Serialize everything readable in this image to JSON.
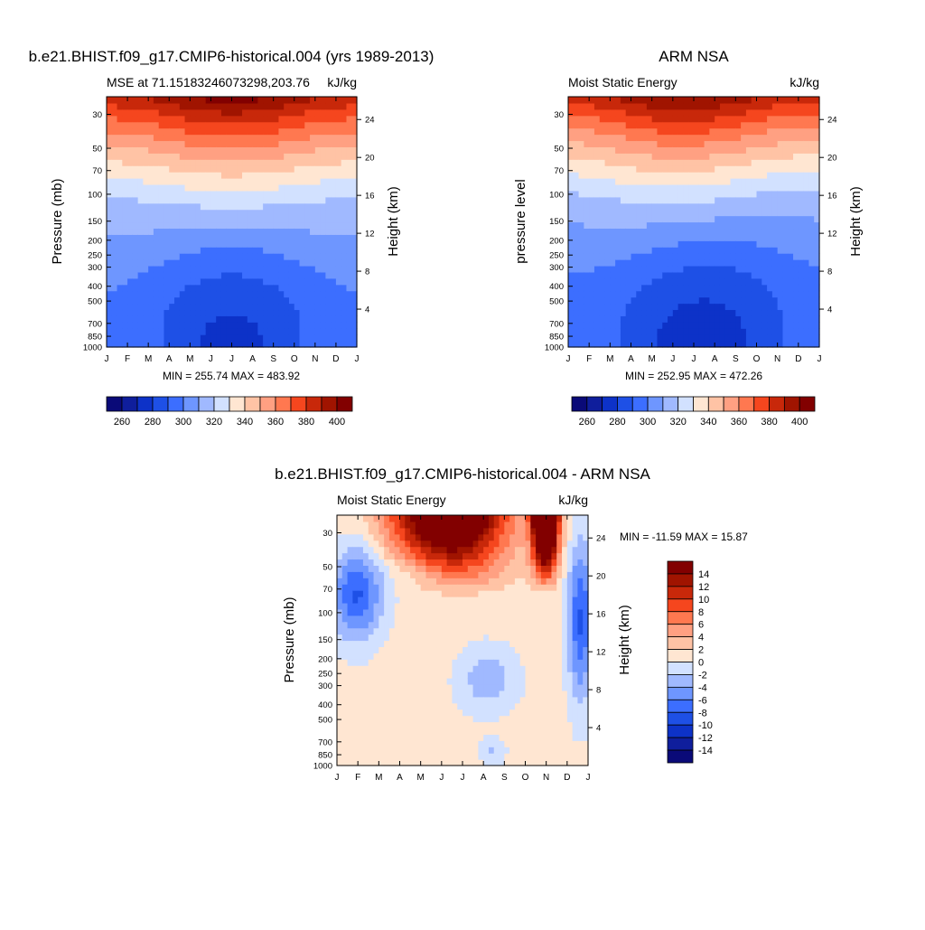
{
  "chart_data": [
    {
      "type": "heatmap",
      "id": "model",
      "title": "b.e21.BHIST.f09_g17.CMIP6-historical.004 (yrs 1989-2013)",
      "left_subtitle": "MSE at 71.15183246073298,203.76",
      "right_subtitle": "kJ/kg",
      "ylabel": "Pressure (mb)",
      "y2label": "Height (km)",
      "x_ticks": [
        "J",
        "F",
        "M",
        "A",
        "M",
        "J",
        "J",
        "A",
        "S",
        "O",
        "N",
        "D",
        "J"
      ],
      "p_ticks": [
        "30",
        "50",
        "70",
        "100",
        "150",
        "200",
        "250",
        "300",
        "400",
        "500",
        "700",
        "850",
        "1000"
      ],
      "h_ticks": [
        "24",
        "20",
        "16",
        "12",
        "8",
        "4"
      ],
      "min_max": "MIN = 255.74 MAX = 483.92",
      "levels": [
        260,
        270,
        280,
        290,
        300,
        310,
        320,
        330,
        340,
        350,
        360,
        370,
        380,
        390,
        400
      ],
      "colorbar_labels": [
        "260",
        "280",
        "300",
        "320",
        "340",
        "360",
        "380",
        "400"
      ],
      "colors": [
        "#0a0a78",
        "#0f1e9c",
        "#0d32c8",
        "#1e50e6",
        "#3c6eff",
        "#6e96ff",
        "#a0b9ff",
        "#d2e1ff",
        "#ffe6d2",
        "#ffc3a5",
        "#ffa082",
        "#ff7850",
        "#f5461e",
        "#c8280a",
        "#a01400",
        "#820000"
      ]
    },
    {
      "type": "heatmap",
      "id": "obs",
      "title": "ARM NSA",
      "left_subtitle": "Moist Static Energy",
      "right_subtitle": "kJ/kg",
      "ylabel": "pressure level",
      "y2label": "Height (km)",
      "x_ticks": [
        "J",
        "F",
        "M",
        "A",
        "M",
        "J",
        "J",
        "A",
        "S",
        "O",
        "N",
        "D",
        "J"
      ],
      "p_ticks": [
        "30",
        "50",
        "70",
        "100",
        "150",
        "200",
        "250",
        "300",
        "400",
        "500",
        "700",
        "850",
        "1000"
      ],
      "h_ticks": [
        "24",
        "20",
        "16",
        "12",
        "8",
        "4"
      ],
      "min_max": "MIN = 252.95 MAX = 472.26",
      "levels": [
        260,
        270,
        280,
        290,
        300,
        310,
        320,
        330,
        340,
        350,
        360,
        370,
        380,
        390,
        400
      ],
      "colorbar_labels": [
        "260",
        "280",
        "300",
        "320",
        "340",
        "360",
        "380",
        "400"
      ],
      "colors": [
        "#0a0a78",
        "#0f1e9c",
        "#0d32c8",
        "#1e50e6",
        "#3c6eff",
        "#6e96ff",
        "#a0b9ff",
        "#d2e1ff",
        "#ffe6d2",
        "#ffc3a5",
        "#ffa082",
        "#ff7850",
        "#f5461e",
        "#c8280a",
        "#a01400",
        "#820000"
      ]
    },
    {
      "type": "heatmap",
      "id": "diff",
      "title": "b.e21.BHIST.f09_g17.CMIP6-historical.004 - ARM NSA",
      "left_subtitle": "Moist Static Energy",
      "right_subtitle": "kJ/kg",
      "ylabel": "Pressure (mb)",
      "y2label": "Height (km)",
      "x_ticks": [
        "J",
        "F",
        "M",
        "A",
        "M",
        "J",
        "J",
        "A",
        "S",
        "O",
        "N",
        "D",
        "J"
      ],
      "p_ticks": [
        "30",
        "50",
        "70",
        "100",
        "150",
        "200",
        "250",
        "300",
        "400",
        "500",
        "700",
        "850",
        "1000"
      ],
      "h_ticks": [
        "24",
        "20",
        "16",
        "12",
        "8",
        "4"
      ],
      "min_max": "MIN = -11.59 MAX =  15.87",
      "levels": [
        -14,
        -12,
        -10,
        -8,
        -6,
        -4,
        -2,
        0,
        2,
        4,
        6,
        8,
        10,
        12,
        14
      ],
      "colorbar_labels": [
        "14",
        "12",
        "10",
        "8",
        "6",
        "4",
        "2",
        "0",
        "-2",
        "-4",
        "-6",
        "-8",
        "-10",
        "-12",
        "-14"
      ],
      "colors": [
        "#0a0a78",
        "#0f1e9c",
        "#0d32c8",
        "#1e50e6",
        "#3c6eff",
        "#6e96ff",
        "#a0b9ff",
        "#d2e1ff",
        "#ffe6d2",
        "#ffc3a5",
        "#ffa082",
        "#ff7850",
        "#f5461e",
        "#c8280a",
        "#a01400",
        "#820000"
      ]
    }
  ]
}
